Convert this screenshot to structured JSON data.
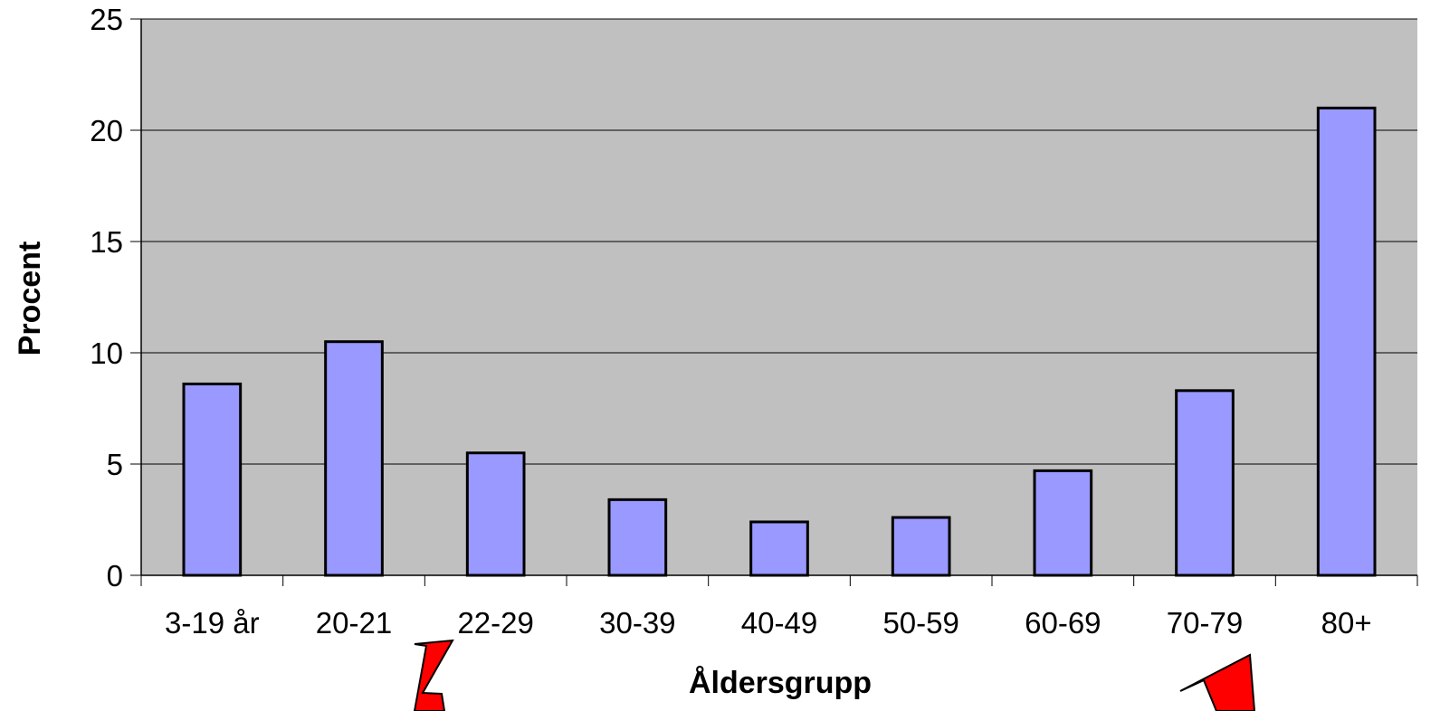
{
  "chart_data": {
    "type": "bar",
    "xlabel": "Åldersgrupp",
    "ylabel": "Procent",
    "ylim": [
      0,
      25
    ],
    "yticks": [
      "0",
      "5",
      "10",
      "15",
      "20",
      "25"
    ],
    "categories": [
      "3-19 år",
      "20-21",
      "22-29",
      "30-39",
      "40-49",
      "50-59",
      "60-69",
      "70-79",
      "80+"
    ],
    "values": [
      8.6,
      10.5,
      5.5,
      3.4,
      2.4,
      2.6,
      4.7,
      8.3,
      21.0
    ],
    "grid": true,
    "legend": "none",
    "colors": {
      "plot_background": "#c0c0c0",
      "bar_fill": "#9999ff",
      "bar_stroke": "#000000",
      "arrow": "#ff0000"
    },
    "annotations": [
      {
        "type": "arrow",
        "points_to": "22-29",
        "color": "#ff0000"
      },
      {
        "type": "arrow",
        "points_to": "70-79",
        "color": "#ff0000"
      }
    ]
  }
}
